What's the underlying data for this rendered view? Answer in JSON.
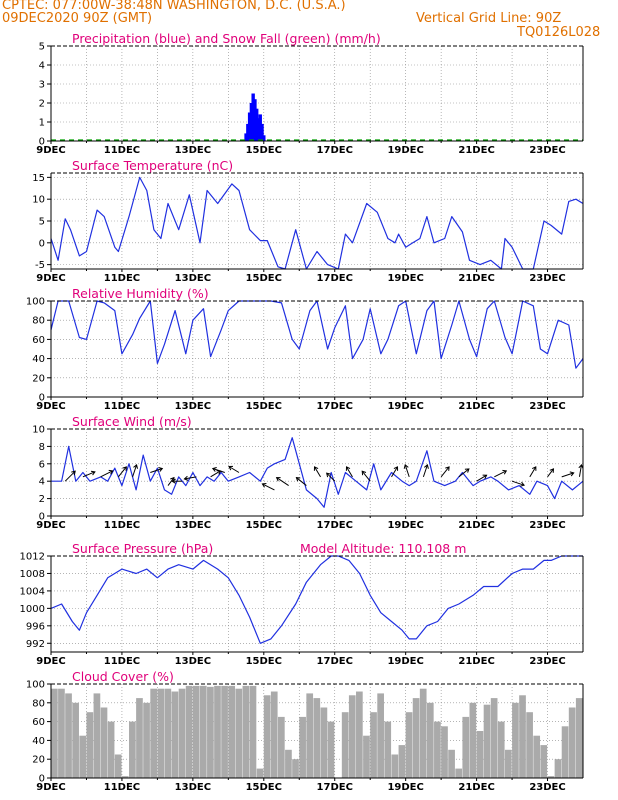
{
  "header": {
    "line1_left": "CPTEC:   077:00W-38:48N   WASHINGTON, D.C. (U.S.A.)",
    "line2_left": "09DEC2020 90Z (GMT)",
    "line2_right": "Vertical Grid Line: 90Z",
    "code": "TQ0126L028"
  },
  "chart_data": [
    {
      "type": "bar",
      "title": "Precipitation (blue) and Snow Fall (green) (mm/h)",
      "ylim": [
        0,
        5
      ],
      "yticks": [
        0,
        1,
        2,
        3,
        4,
        5
      ],
      "x_tick_labels": [
        "9DEC",
        "11DEC",
        "13DEC",
        "15DEC",
        "17DEC",
        "19DEC",
        "21DEC",
        "23DEC"
      ],
      "series": [
        {
          "name": "Precipitation",
          "color": "#0000ff",
          "x": [
            14.5,
            14.55,
            14.6,
            14.65,
            14.7,
            14.75,
            14.8,
            14.85,
            14.9,
            14.95,
            15.0
          ],
          "values": [
            0.4,
            0.9,
            1.5,
            2.0,
            2.5,
            2.2,
            1.7,
            1.2,
            1.4,
            0.9,
            0.3
          ]
        },
        {
          "name": "Snow Fall",
          "color": "#00a000",
          "values": []
        }
      ]
    },
    {
      "type": "line",
      "title": "Surface Temperature (nC)",
      "ylim": [
        -6,
        16
      ],
      "yticks": [
        -5,
        0,
        5,
        10,
        15
      ],
      "x_tick_labels": [
        "9DEC",
        "11DEC",
        "13DEC",
        "15DEC",
        "17DEC",
        "19DEC",
        "21DEC",
        "23DEC"
      ],
      "series": [
        {
          "color": "#2030e0",
          "x": [
            9.0,
            9.2,
            9.4,
            9.55,
            9.8,
            10.0,
            10.3,
            10.5,
            10.8,
            10.9,
            11.2,
            11.5,
            11.7,
            11.9,
            12.1,
            12.3,
            12.6,
            12.9,
            13.2,
            13.4,
            13.7,
            14.1,
            14.3,
            14.6,
            14.9,
            15.1,
            15.4,
            15.6,
            15.9,
            16.2,
            16.5,
            16.8,
            17.1,
            17.3,
            17.5,
            17.9,
            18.2,
            18.5,
            18.7,
            18.8,
            19.0,
            19.2,
            19.4,
            19.6,
            19.8,
            20.1,
            20.3,
            20.6,
            20.8,
            21.1,
            21.4,
            21.7,
            21.8,
            22.0,
            22.3,
            22.6,
            22.9,
            23.1,
            23.4,
            23.6,
            23.8,
            24.0
          ],
          "values": [
            1,
            -4,
            5.5,
            3,
            -3,
            -2,
            7.5,
            6,
            -1,
            -2,
            6,
            15,
            12,
            3,
            1,
            9,
            3,
            11,
            0,
            12,
            9,
            13.5,
            12,
            3,
            0.5,
            0.5,
            -5.5,
            -6,
            3,
            -6,
            -2,
            -5,
            -6.5,
            2,
            0,
            9,
            7,
            1,
            0,
            2,
            -1,
            0,
            1,
            6,
            0,
            1,
            6,
            2.5,
            -4,
            -5,
            -4,
            -6,
            1,
            -1,
            -6,
            -6.5,
            5,
            4,
            2,
            9.5,
            10,
            9
          ]
        }
      ]
    },
    {
      "type": "line",
      "title": "Relative Humidity (%)",
      "ylim": [
        0,
        100
      ],
      "yticks": [
        0,
        20,
        40,
        60,
        80,
        100
      ],
      "x_tick_labels": [
        "9DEC",
        "11DEC",
        "13DEC",
        "15DEC",
        "17DEC",
        "19DEC",
        "21DEC",
        "23DEC"
      ],
      "series": [
        {
          "color": "#2030e0",
          "x": [
            9.0,
            9.2,
            9.5,
            9.8,
            10.0,
            10.3,
            10.5,
            10.8,
            11.0,
            11.3,
            11.5,
            11.8,
            12.0,
            12.2,
            12.5,
            12.8,
            13.0,
            13.3,
            13.5,
            13.8,
            14.0,
            14.3,
            14.6,
            14.9,
            15.2,
            15.5,
            15.8,
            16.0,
            16.3,
            16.5,
            16.8,
            17.0,
            17.3,
            17.5,
            17.8,
            18.0,
            18.3,
            18.5,
            18.8,
            19.0,
            19.3,
            19.6,
            19.8,
            20.0,
            20.3,
            20.5,
            20.8,
            21.0,
            21.3,
            21.5,
            21.8,
            22.0,
            22.3,
            22.6,
            22.8,
            23.0,
            23.3,
            23.6,
            23.8,
            24.0
          ],
          "values": [
            70,
            100,
            100,
            62,
            60,
            100,
            98,
            90,
            45,
            65,
            82,
            100,
            35,
            55,
            90,
            45,
            80,
            92,
            42,
            70,
            90,
            100,
            100,
            100,
            100,
            98,
            60,
            50,
            90,
            100,
            50,
            72,
            95,
            40,
            60,
            92,
            45,
            60,
            95,
            100,
            45,
            90,
            100,
            40,
            75,
            100,
            60,
            42,
            92,
            100,
            62,
            45,
            100,
            95,
            50,
            45,
            80,
            75,
            30,
            40
          ]
        }
      ]
    },
    {
      "type": "line",
      "title": "Surface Wind (m/s)",
      "ylim": [
        0,
        10
      ],
      "yticks": [
        0,
        2,
        4,
        6,
        8,
        10
      ],
      "x_tick_labels": [
        "9DEC",
        "11DEC",
        "13DEC",
        "15DEC",
        "17DEC",
        "19DEC",
        "21DEC",
        "23DEC"
      ],
      "series": [
        {
          "color": "#2030e0",
          "x": [
            9.0,
            9.3,
            9.5,
            9.7,
            9.9,
            10.1,
            10.4,
            10.6,
            10.8,
            11.0,
            11.2,
            11.4,
            11.6,
            11.8,
            12.0,
            12.2,
            12.4,
            12.6,
            12.8,
            13.0,
            13.2,
            13.4,
            13.6,
            13.8,
            14.0,
            14.3,
            14.6,
            14.9,
            15.1,
            15.3,
            15.6,
            15.8,
            16.0,
            16.2,
            16.5,
            16.7,
            16.9,
            17.1,
            17.3,
            17.6,
            17.9,
            18.1,
            18.3,
            18.6,
            18.9,
            19.1,
            19.3,
            19.6,
            19.8,
            20.1,
            20.4,
            20.6,
            20.9,
            21.1,
            21.4,
            21.6,
            21.9,
            22.2,
            22.5,
            22.7,
            23.0,
            23.2,
            23.4,
            23.7,
            24.0
          ],
          "values": [
            4,
            4,
            8,
            4,
            5,
            4,
            4.5,
            4,
            5.5,
            3.5,
            6,
            3,
            7,
            4,
            5.5,
            3,
            2.5,
            4.5,
            3.5,
            5,
            3.5,
            4.5,
            4,
            5,
            4,
            4.5,
            5,
            4,
            5.5,
            6,
            6.5,
            9,
            6,
            3,
            2,
            1,
            5,
            2.5,
            5,
            4,
            3,
            6,
            3,
            5,
            4,
            3.5,
            4,
            7.5,
            4,
            3.5,
            4,
            5,
            3.5,
            4,
            4.5,
            4,
            3,
            3.5,
            2.5,
            4,
            3.5,
            2,
            4,
            3,
            4
          ]
        }
      ],
      "vectors": [
        {
          "x": 9.4,
          "v": 4,
          "dx": 10,
          "dy": -10
        },
        {
          "x": 9.9,
          "v": 4.5,
          "dx": 12,
          "dy": -5
        },
        {
          "x": 10.4,
          "v": 4.5,
          "dx": 12,
          "dy": -6
        },
        {
          "x": 10.9,
          "v": 4.5,
          "dx": 8,
          "dy": -10
        },
        {
          "x": 11.3,
          "v": 4.5,
          "dx": 4,
          "dy": -12
        },
        {
          "x": 11.8,
          "v": 5,
          "dx": 12,
          "dy": -4
        },
        {
          "x": 12.3,
          "v": 3.5,
          "dx": 6,
          "dy": -8
        },
        {
          "x": 12.7,
          "v": 4,
          "dx": -10,
          "dy": 0
        },
        {
          "x": 13.1,
          "v": 4.5,
          "dx": -12,
          "dy": 2
        },
        {
          "x": 13.5,
          "v": 4.5,
          "dx": 10,
          "dy": -6
        },
        {
          "x": 13.9,
          "v": 5,
          "dx": -12,
          "dy": -4
        },
        {
          "x": 14.3,
          "v": 5,
          "dx": -10,
          "dy": -6
        },
        {
          "x": 15.3,
          "v": 3,
          "dx": -12,
          "dy": -6
        },
        {
          "x": 15.7,
          "v": 3.5,
          "dx": -12,
          "dy": -8
        },
        {
          "x": 16.2,
          "v": 3.5,
          "dx": -10,
          "dy": -8
        },
        {
          "x": 16.6,
          "v": 4.5,
          "dx": -6,
          "dy": -10
        },
        {
          "x": 17.0,
          "v": 4,
          "dx": -8,
          "dy": -8
        },
        {
          "x": 17.5,
          "v": 4.5,
          "dx": -6,
          "dy": -10
        },
        {
          "x": 18.0,
          "v": 4,
          "dx": -8,
          "dy": -10
        },
        {
          "x": 18.6,
          "v": 4.5,
          "dx": 6,
          "dy": -10
        },
        {
          "x": 19.1,
          "v": 4.5,
          "dx": -4,
          "dy": -12
        },
        {
          "x": 19.5,
          "v": 4.5,
          "dx": 4,
          "dy": -12
        },
        {
          "x": 20.0,
          "v": 4.5,
          "dx": 8,
          "dy": -10
        },
        {
          "x": 20.5,
          "v": 4.5,
          "dx": 10,
          "dy": -8
        },
        {
          "x": 21.0,
          "v": 4,
          "dx": 10,
          "dy": -6
        },
        {
          "x": 21.5,
          "v": 4.5,
          "dx": 12,
          "dy": -6
        },
        {
          "x": 22.0,
          "v": 4,
          "dx": 12,
          "dy": 4
        },
        {
          "x": 22.5,
          "v": 4.5,
          "dx": 6,
          "dy": -10
        },
        {
          "x": 23.0,
          "v": 4.5,
          "dx": 6,
          "dy": -8
        },
        {
          "x": 23.4,
          "v": 4.5,
          "dx": 12,
          "dy": -4
        },
        {
          "x": 23.9,
          "v": 4.5,
          "dx": 2,
          "dy": -12
        }
      ]
    },
    {
      "type": "line",
      "title": "Surface Pressure (hPa)",
      "annotation": "Model Altitude: 110.108  m",
      "ylim": [
        990,
        1012
      ],
      "yticks": [
        992,
        996,
        1000,
        1004,
        1008,
        1012
      ],
      "x_tick_labels": [
        "9DEC",
        "11DEC",
        "13DEC",
        "15DEC",
        "17DEC",
        "19DEC",
        "21DEC",
        "23DEC"
      ],
      "series": [
        {
          "color": "#2030e0",
          "x": [
            9.0,
            9.3,
            9.6,
            9.8,
            10.0,
            10.3,
            10.6,
            11.0,
            11.4,
            11.7,
            12.0,
            12.3,
            12.6,
            13.0,
            13.3,
            13.7,
            14.0,
            14.3,
            14.6,
            14.9,
            15.2,
            15.5,
            15.9,
            16.2,
            16.6,
            16.9,
            17.1,
            17.4,
            17.7,
            18.0,
            18.3,
            18.6,
            18.9,
            19.1,
            19.3,
            19.6,
            19.9,
            20.2,
            20.5,
            20.9,
            21.2,
            21.6,
            22.0,
            22.3,
            22.6,
            22.9,
            23.1,
            23.4,
            23.6,
            24.0
          ],
          "values": [
            1000,
            1001,
            997,
            995,
            999,
            1003,
            1007,
            1009,
            1008,
            1009,
            1007,
            1009,
            1010,
            1009,
            1011,
            1009,
            1007,
            1003,
            998,
            992,
            993,
            996,
            1001,
            1006,
            1010,
            1012,
            1012,
            1011,
            1008,
            1003,
            999,
            997,
            995,
            993,
            993,
            996,
            997,
            1000,
            1001,
            1003,
            1005,
            1005,
            1008,
            1009,
            1009,
            1011,
            1011,
            1012,
            1012,
            1012
          ]
        }
      ]
    },
    {
      "type": "bar",
      "title": "Cloud Cover (%)",
      "ylim": [
        0,
        100
      ],
      "yticks": [
        0,
        20,
        40,
        60,
        80,
        100
      ],
      "x_tick_labels": [
        "9DEC",
        "11DEC",
        "13DEC",
        "15DEC",
        "17DEC",
        "19DEC",
        "21DEC",
        "23DEC"
      ],
      "series": [
        {
          "name": "Cloud Cover",
          "color": "#aaaaaa",
          "x": [
            9.0,
            9.2,
            9.4,
            9.6,
            9.8,
            10.0,
            10.2,
            10.4,
            10.6,
            10.8,
            11.0,
            11.2,
            11.4,
            11.6,
            11.8,
            12.0,
            12.2,
            12.4,
            12.6,
            12.8,
            13.0,
            13.2,
            13.4,
            13.6,
            13.8,
            14.0,
            14.2,
            14.4,
            14.6,
            14.8,
            15.0,
            15.2,
            15.4,
            15.6,
            15.8,
            16.0,
            16.2,
            16.4,
            16.6,
            16.8,
            17.0,
            17.2,
            17.4,
            17.6,
            17.8,
            18.0,
            18.2,
            18.4,
            18.6,
            18.8,
            19.0,
            19.2,
            19.4,
            19.6,
            19.8,
            20.0,
            20.2,
            20.4,
            20.6,
            20.8,
            21.0,
            21.2,
            21.4,
            21.6,
            21.8,
            22.0,
            22.2,
            22.4,
            22.6,
            22.8,
            23.0,
            23.2,
            23.4,
            23.6,
            23.8
          ],
          "values": [
            95,
            95,
            90,
            80,
            45,
            70,
            90,
            75,
            60,
            25,
            2,
            60,
            85,
            80,
            95,
            95,
            95,
            92,
            95,
            98,
            98,
            98,
            97,
            98,
            98,
            98,
            95,
            98,
            98,
            10,
            88,
            92,
            65,
            30,
            20,
            65,
            90,
            85,
            75,
            60,
            0,
            70,
            88,
            92,
            45,
            70,
            90,
            60,
            25,
            35,
            70,
            85,
            95,
            80,
            60,
            55,
            30,
            10,
            65,
            80,
            50,
            78,
            85,
            60,
            30,
            80,
            88,
            70,
            45,
            35,
            2,
            20,
            55,
            75,
            85
          ]
        }
      ]
    }
  ]
}
